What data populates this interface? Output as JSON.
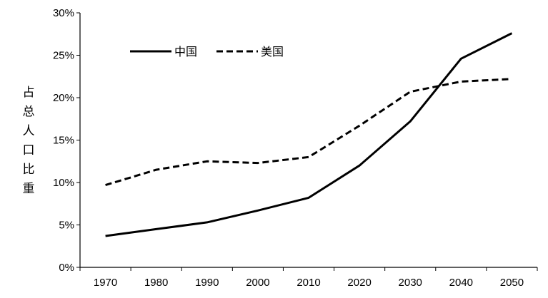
{
  "chart_data": {
    "type": "line",
    "x": [
      1970,
      1980,
      1990,
      2000,
      2010,
      2020,
      2030,
      2040,
      2050
    ],
    "categories": [
      "1970",
      "1980",
      "1990",
      "2000",
      "2010",
      "2020",
      "2030",
      "2040",
      "2050"
    ],
    "series": [
      {
        "name": "中国",
        "style": "solid",
        "color": "#000000",
        "values": [
          3.7,
          4.5,
          5.3,
          6.7,
          8.2,
          12.0,
          17.2,
          24.6,
          27.6
        ]
      },
      {
        "name": "美国",
        "style": "dashed",
        "color": "#000000",
        "values": [
          9.7,
          11.5,
          12.5,
          12.3,
          13.0,
          16.7,
          20.7,
          21.9,
          22.2
        ]
      }
    ],
    "ylabel": "占总人口比重",
    "ylim": [
      0,
      30
    ],
    "yticks": [
      "0%",
      "5%",
      "10%",
      "15%",
      "20%",
      "25%",
      "30%"
    ],
    "ytick_values": [
      0,
      5,
      10,
      15,
      20,
      25,
      30
    ],
    "grid": false,
    "legend_position": "top-left"
  }
}
